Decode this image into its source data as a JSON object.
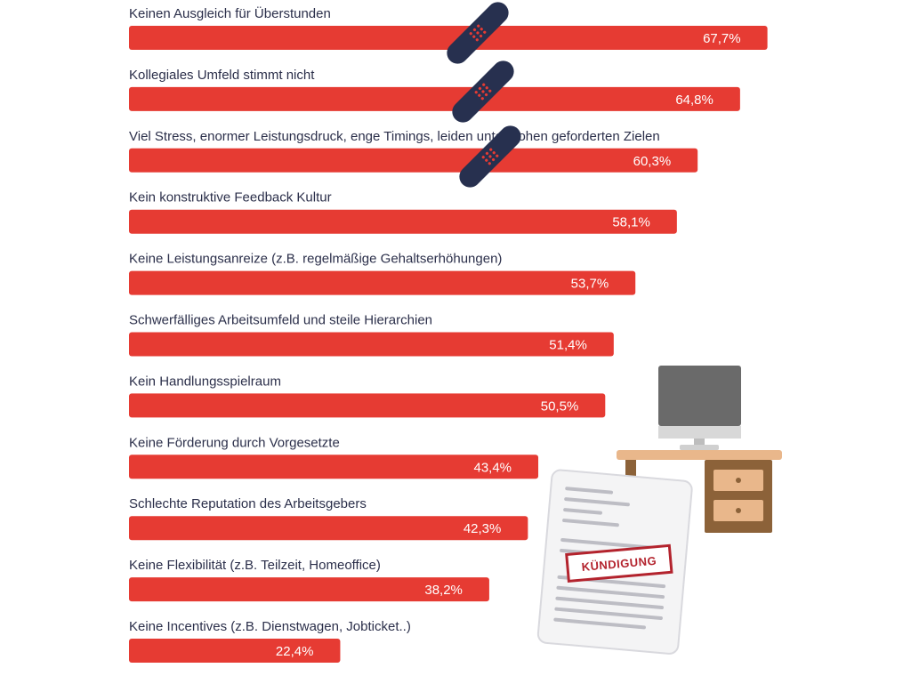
{
  "chart_data": {
    "type": "bar",
    "orientation": "horizontal",
    "categories": [
      "Keinen Ausgleich für Überstunden",
      "Kollegiales Umfeld stimmt nicht",
      "Viel Stress, enormer Leistungsdruck, enge Timings, leiden unter hohen geforderten Zielen",
      "Kein konstruktive Feedback Kultur",
      "Keine Leistungsanreize (z.B. regelmäßige Gehaltserhöhungen)",
      "Schwerfälliges Arbeitsumfeld und steile Hierarchien",
      "Kein Handlungsspielraum",
      "Keine Förderung durch Vorgesetzte",
      "Schlechte Reputation des Arbeitsgebers",
      "Keine Flexibilität (z.B. Teilzeit, Homeoffice)",
      "Keine Incentives (z.B. Dienstwagen, Jobticket..)"
    ],
    "values": [
      67.7,
      64.8,
      60.3,
      58.1,
      53.7,
      51.4,
      50.5,
      43.4,
      42.3,
      38.2,
      22.4
    ],
    "value_labels": [
      "67,7%",
      "64,8%",
      "60,3%",
      "58,1%",
      "53,7%",
      "51,4%",
      "50,5%",
      "43,4%",
      "42,3%",
      "38,2%",
      "22,4%"
    ],
    "unit": "%",
    "title": "",
    "xlabel": "",
    "ylabel": "",
    "grid": false,
    "legend": "none"
  },
  "colors": {
    "bar": "#e63b33",
    "label_text": "#2b2f4a",
    "value_text": "#ffffff",
    "bandage": "#27304f",
    "bandage_dots": "#e63b33",
    "desk_top": "#e9b78b",
    "desk_body": "#8c6239",
    "monitor": "#6a6a6a",
    "stamp": "#b3232d"
  },
  "decorations": {
    "icons": [
      "bandage-icon",
      "bandage-icon",
      "bandage-icon",
      "desk-monitor-illustration",
      "termination-letter-illustration"
    ],
    "stamp_text": "KÜNDIGUNG"
  }
}
